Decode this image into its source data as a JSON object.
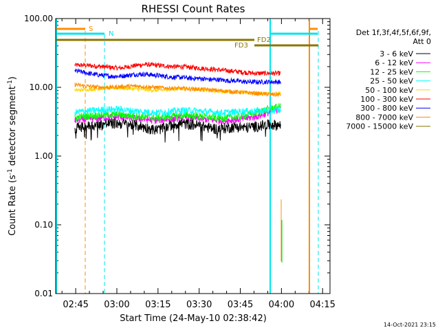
{
  "chart_data": {
    "type": "line",
    "title": "RHESSI Count Rates",
    "xlabel": "Start Time (24-May-10 02:38:42)",
    "ylabel_main": "Count Rate (s",
    "ylabel_sup1": "-1",
    "ylabel_mid": " detector segment",
    "ylabel_sup2": "-1",
    "ylabel_end": ")",
    "x_units": "minutes after 02:38:42",
    "xlim": [
      0,
      100
    ],
    "ylim": [
      0.01,
      100
    ],
    "y_scale": "log",
    "x_ticks": [
      {
        "v": 7.3,
        "label": "02:45"
      },
      {
        "v": 22.3,
        "label": "03:00"
      },
      {
        "v": 37.3,
        "label": "03:15"
      },
      {
        "v": 52.3,
        "label": "03:30"
      },
      {
        "v": 67.3,
        "label": "03:45"
      },
      {
        "v": 82.3,
        "label": "04:00"
      },
      {
        "v": 97.3,
        "label": "04:15"
      }
    ],
    "y_ticks": [
      {
        "v": 100,
        "label": "100.00"
      },
      {
        "v": 10,
        "label": "10.00"
      },
      {
        "v": 1,
        "label": "1.00"
      },
      {
        "v": 0.1,
        "label": "0.10"
      },
      {
        "v": 0.01,
        "label": "0.01"
      }
    ],
    "legend_header": [
      "Det 1f,3f,4f,5f,6f,9f,",
      "Att 0"
    ],
    "legend_position": "right",
    "series": [
      {
        "name": "3 - 6 keV",
        "color": "#000000",
        "values": [
          2.6,
          2.7,
          2.8,
          2.9,
          3.0,
          3.0,
          2.9,
          2.8,
          2.6,
          2.4,
          2.6,
          2.9,
          3.0,
          2.9,
          2.8,
          2.6,
          2.5,
          2.6,
          2.7,
          2.6,
          2.7,
          2.8,
          2.9,
          2.8
        ]
      },
      {
        "name": "6 - 12 keV",
        "color": "#ff00ff",
        "values": [
          3.3,
          3.4,
          3.5,
          3.6,
          3.7,
          3.7,
          3.6,
          3.5,
          3.4,
          3.3,
          3.4,
          3.5,
          3.6,
          3.6,
          3.5,
          3.4,
          3.3,
          3.3,
          3.4,
          3.5,
          3.7,
          4.0,
          4.5,
          4.8
        ]
      },
      {
        "name": "12 - 25 keV",
        "color": "#00ff00",
        "values": [
          3.6,
          3.8,
          3.9,
          4.0,
          4.0,
          4.0,
          3.9,
          3.8,
          3.7,
          3.6,
          3.7,
          3.8,
          3.9,
          3.9,
          3.8,
          3.7,
          3.6,
          3.6,
          3.7,
          3.9,
          4.2,
          4.6,
          5.0,
          5.3
        ]
      },
      {
        "name": "25 - 50 keV",
        "color": "#00ffff",
        "values": [
          4.3,
          4.5,
          4.6,
          4.7,
          4.8,
          4.8,
          4.6,
          4.5,
          4.4,
          4.3,
          4.4,
          4.5,
          4.6,
          4.6,
          4.5,
          4.4,
          4.3,
          4.3,
          4.4,
          4.5,
          4.5,
          4.6,
          4.6,
          4.7
        ]
      },
      {
        "name": "50 - 100 keV",
        "color": "#ffd700",
        "values": [
          9.0,
          9.2,
          9.4,
          9.6,
          9.8,
          9.8,
          9.6,
          9.4,
          9.2,
          9.0,
          9.2,
          9.4,
          9.6,
          9.5,
          9.3,
          9.0,
          8.8,
          8.6,
          8.5,
          8.4,
          8.3,
          8.2,
          8.2,
          8.1
        ]
      },
      {
        "name": "100 - 300 keV",
        "color": "#ff0000",
        "values": [
          21,
          21,
          20.5,
          20,
          19.5,
          19,
          20,
          21,
          21.5,
          21,
          20.5,
          20,
          20,
          19.5,
          19,
          18.5,
          18,
          17.5,
          17,
          16.5,
          16,
          16,
          16,
          16
        ]
      },
      {
        "name": "300 - 800 keV",
        "color": "#0000ff",
        "values": [
          17.5,
          16.5,
          15.5,
          15,
          14.5,
          14.5,
          15,
          15.5,
          15.5,
          15,
          14.5,
          14,
          14,
          13.5,
          13.5,
          13,
          13,
          12.5,
          12.5,
          12,
          12,
          12,
          12,
          12
        ]
      },
      {
        "name": "800 - 7000 keV",
        "color": "#ff8c00",
        "values": [
          11.0,
          10.5,
          10.2,
          10.0,
          10.0,
          10.2,
          10.4,
          10.4,
          10.2,
          10.0,
          9.8,
          9.7,
          9.6,
          9.5,
          9.4,
          9.2,
          9.0,
          8.8,
          8.6,
          8.4,
          8.2,
          8.0,
          7.9,
          7.8
        ]
      },
      {
        "name": "7000 - 15000 keV",
        "color": "#8b7500",
        "values": []
      }
    ],
    "series_x_range": [
      7.0,
      82.0
    ],
    "annotations": [
      {
        "label": "S",
        "color": "#ff8c00"
      },
      {
        "label": "N",
        "color": "#00e5ee"
      },
      {
        "label": "FD2",
        "color": "#8b7500"
      },
      {
        "label": "FD3",
        "color": "#8b7500"
      }
    ],
    "footer_timestamp": "14-Oct-2021 23:15"
  }
}
